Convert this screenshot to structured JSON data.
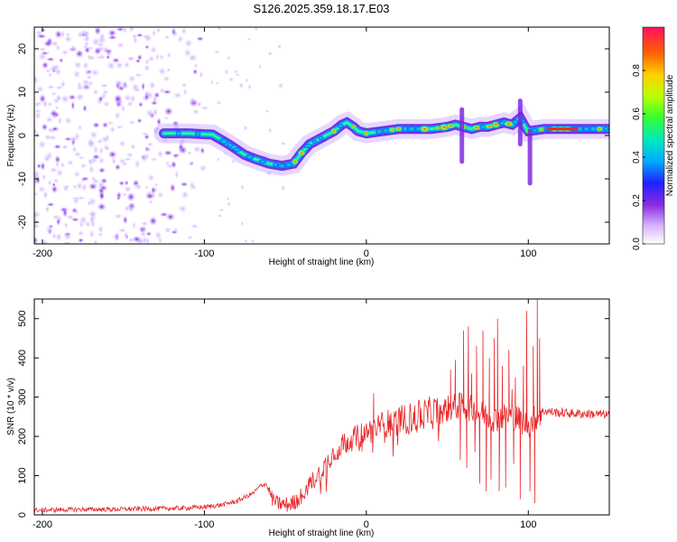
{
  "title": "S126.2025.359.18.17.E03",
  "colors": {
    "snr_line": "#e8282a",
    "frame": "#000000",
    "background": "#ffffff"
  },
  "chart_data": [
    {
      "type": "heatmap",
      "name": "spectrogram",
      "xlabel": "Height of straight line (km)",
      "ylabel": "Frequency (Hz)",
      "xlim": [
        -205,
        150
      ],
      "ylim": [
        -25,
        25
      ],
      "xticks": [
        -200,
        -100,
        0,
        100
      ],
      "yticks": [
        -20,
        -10,
        0,
        10,
        20
      ],
      "xtick_labels": [
        "-200",
        "-100",
        "0",
        "100"
      ],
      "ytick_labels": [
        "-20",
        "-10",
        "0",
        "10",
        "20"
      ],
      "ridge": {
        "x": [
          -125,
          -110,
          -95,
          -85,
          -75,
          -68,
          -60,
          -52,
          -45,
          -40,
          -35,
          -30,
          -25,
          -20,
          -15,
          -12,
          -8,
          -5,
          0,
          10,
          20,
          30,
          40,
          50,
          55,
          60,
          65,
          70,
          75,
          80,
          85,
          90,
          95,
          98,
          100,
          110,
          120,
          130,
          140,
          150
        ],
        "y": [
          0.5,
          0.5,
          0.2,
          -2.0,
          -4.5,
          -5.5,
          -6.5,
          -7.0,
          -6.5,
          -4.0,
          -2.0,
          -1.0,
          0.0,
          1.0,
          2.5,
          3.0,
          2.0,
          1.0,
          0.5,
          1.0,
          1.5,
          1.5,
          1.5,
          2.0,
          2.5,
          2.0,
          1.5,
          2.0,
          2.0,
          2.5,
          3.0,
          2.5,
          4.0,
          2.0,
          1.0,
          1.5,
          1.5,
          1.5,
          1.5,
          1.5
        ]
      },
      "colorbar": {
        "label": "Normalized spectral amplitude",
        "range": [
          0.0,
          1.0
        ],
        "ticks": [
          0.0,
          0.2,
          0.4,
          0.6,
          0.8
        ],
        "tick_labels": [
          "0.0",
          "0.2",
          "0.4",
          "0.6",
          "0.8"
        ]
      }
    },
    {
      "type": "line",
      "name": "snr",
      "xlabel": "Height of straight line (km)",
      "ylabel": "SNR (10 * v/v)",
      "xlim": [
        -205,
        150
      ],
      "ylim": [
        0,
        550
      ],
      "xticks": [
        -200,
        -100,
        0,
        100
      ],
      "yticks": [
        0,
        100,
        200,
        300,
        400,
        500
      ],
      "xtick_labels": [
        "-200",
        "-100",
        "0",
        "100"
      ],
      "ytick_labels": [
        "0",
        "100",
        "200",
        "300",
        "400",
        "500"
      ],
      "series": [
        {
          "name": "SNR",
          "x": [
            -205,
            -190,
            -175,
            -160,
            -145,
            -130,
            -115,
            -100,
            -90,
            -80,
            -75,
            -70,
            -65,
            -62,
            -58,
            -55,
            -50,
            -45,
            -40,
            -35,
            -30,
            -25,
            -20,
            -15,
            -10,
            -5,
            0,
            5,
            10,
            20,
            30,
            40,
            45,
            50,
            55,
            60,
            65,
            70,
            75,
            80,
            85,
            90,
            95,
            100,
            105,
            108,
            110,
            115,
            120,
            130,
            140,
            150
          ],
          "values": [
            12,
            13,
            14,
            14,
            15,
            16,
            17,
            20,
            25,
            35,
            45,
            55,
            75,
            80,
            40,
            30,
            25,
            30,
            50,
            80,
            100,
            130,
            160,
            180,
            190,
            200,
            210,
            220,
            230,
            240,
            250,
            260,
            265,
            270,
            275,
            280,
            270,
            260,
            250,
            245,
            250,
            255,
            240,
            230,
            250,
            260,
            265,
            262,
            260,
            258,
            257,
            255
          ]
        }
      ],
      "spikes": [
        {
          "x": 4.5,
          "y": 310
        },
        {
          "x": 14,
          "y": 240
        },
        {
          "x": 52,
          "y": 370
        },
        {
          "x": 55,
          "y": 395
        },
        {
          "x": 58,
          "y": 140
        },
        {
          "x": 60,
          "y": 470
        },
        {
          "x": 62,
          "y": 120
        },
        {
          "x": 63,
          "y": 480
        },
        {
          "x": 65,
          "y": 360
        },
        {
          "x": 67,
          "y": 160
        },
        {
          "x": 68,
          "y": 430
        },
        {
          "x": 70,
          "y": 80
        },
        {
          "x": 72,
          "y": 470
        },
        {
          "x": 74,
          "y": 60
        },
        {
          "x": 76,
          "y": 400
        },
        {
          "x": 77,
          "y": 90
        },
        {
          "x": 79,
          "y": 450
        },
        {
          "x": 81,
          "y": 500
        },
        {
          "x": 82,
          "y": 60
        },
        {
          "x": 84,
          "y": 380
        },
        {
          "x": 86,
          "y": 70
        },
        {
          "x": 88,
          "y": 420
        },
        {
          "x": 90,
          "y": 320
        },
        {
          "x": 91,
          "y": 130
        },
        {
          "x": 92,
          "y": 350
        },
        {
          "x": 95,
          "y": 40
        },
        {
          "x": 97,
          "y": 380
        },
        {
          "x": 99,
          "y": 520
        },
        {
          "x": 101,
          "y": 60
        },
        {
          "x": 103,
          "y": 430
        },
        {
          "x": 104,
          "y": 30
        },
        {
          "x": 105.5,
          "y": 560
        },
        {
          "x": 107,
          "y": 450
        }
      ]
    }
  ]
}
